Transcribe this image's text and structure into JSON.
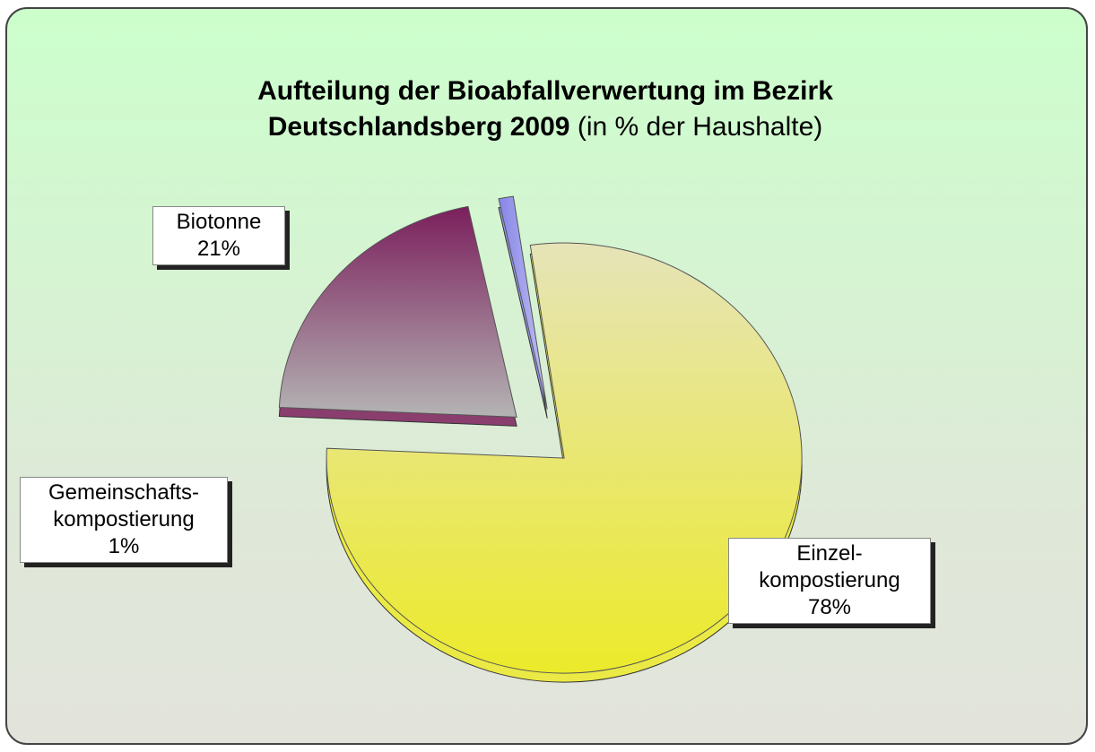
{
  "chart_data": {
    "type": "pie",
    "title": "Aufteilung der Bioabfallverwertung im Bezirk Deutschlandsberg 2009",
    "subtitle": "(in % der Haushalte)",
    "categories": [
      "Biotonne",
      "Gemeinschafts-kompostierung",
      "Einzel-kompostierung"
    ],
    "values": [
      21,
      1,
      78
    ],
    "value_labels": [
      "21%",
      "1%",
      "78%"
    ],
    "colors": [
      "#7b1f5c",
      "#8585e8",
      "#ecea2a"
    ]
  }
}
